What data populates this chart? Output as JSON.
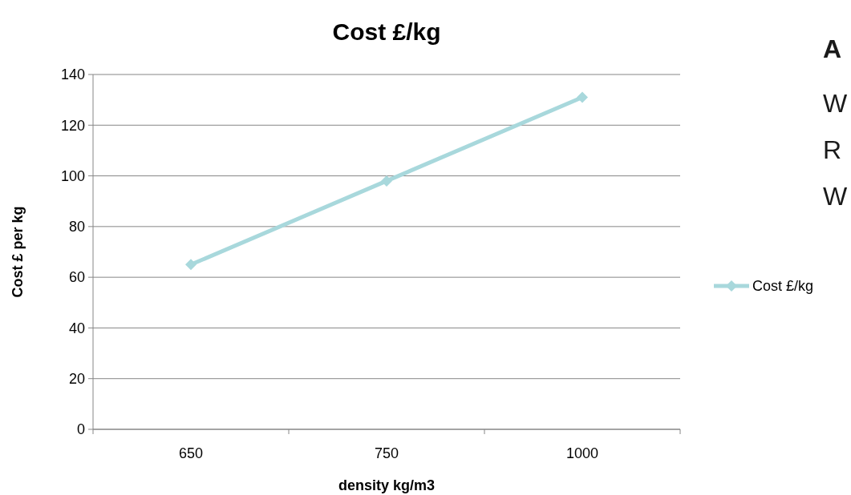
{
  "chart_data": {
    "type": "line",
    "title": "Cost £/kg",
    "xlabel": "density kg/m3",
    "ylabel": "Cost £ per kg",
    "categories": [
      "650",
      "750",
      "1000"
    ],
    "series": [
      {
        "name": "Cost £/kg",
        "color": "#a8d8dc",
        "values": [
          65,
          98,
          131
        ]
      }
    ],
    "ylim": [
      0,
      140
    ],
    "yticks": [
      0,
      20,
      40,
      60,
      80,
      100,
      120,
      140
    ],
    "grid": "y",
    "legend": "right",
    "marker": "diamond",
    "line_style": "solid",
    "annotations": [
      "A",
      "W",
      "R",
      "W"
    ]
  }
}
